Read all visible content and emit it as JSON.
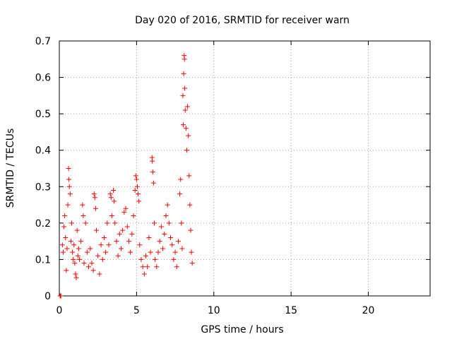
{
  "chart_data": {
    "type": "scatter",
    "title": "Day 020 of 2016, SRMTID for receiver warn",
    "xlabel": "GPS time / hours",
    "ylabel": "SRMTID / TECUs",
    "xlim": [
      0,
      24
    ],
    "ylim": [
      0,
      0.7
    ],
    "xticks": [
      0,
      5,
      10,
      15,
      20
    ],
    "yticks": [
      0,
      0.1,
      0.2,
      0.3,
      0.4,
      0.5,
      0.6,
      0.7
    ],
    "ytick_labels": [
      "0",
      "0.1",
      "0.2",
      "0.3",
      "0.4",
      "0.5",
      "0.6",
      "0.7"
    ],
    "grid": true,
    "marker": "+",
    "series": [
      {
        "name": "SRMTID",
        "color": "#ff0000",
        "points": [
          [
            0.05,
            0.0
          ],
          [
            0.08,
            0.0
          ],
          [
            0.1,
            0.0
          ],
          [
            0.2,
            0.14
          ],
          [
            0.25,
            0.12
          ],
          [
            0.3,
            0.19
          ],
          [
            0.35,
            0.22
          ],
          [
            0.4,
            0.16
          ],
          [
            0.45,
            0.07
          ],
          [
            0.5,
            0.13
          ],
          [
            0.55,
            0.25
          ],
          [
            0.6,
            0.35
          ],
          [
            0.62,
            0.32
          ],
          [
            0.65,
            0.3
          ],
          [
            0.7,
            0.28
          ],
          [
            0.75,
            0.15
          ],
          [
            0.8,
            0.2
          ],
          [
            0.85,
            0.12
          ],
          [
            0.9,
            0.1
          ],
          [
            0.95,
            0.14
          ],
          [
            1.0,
            0.09
          ],
          [
            1.05,
            0.06
          ],
          [
            1.1,
            0.05
          ],
          [
            1.15,
            0.18
          ],
          [
            1.2,
            0.11
          ],
          [
            1.25,
            0.13
          ],
          [
            1.3,
            0.1
          ],
          [
            1.4,
            0.15
          ],
          [
            1.5,
            0.25
          ],
          [
            1.55,
            0.22
          ],
          [
            1.6,
            0.09
          ],
          [
            1.7,
            0.2
          ],
          [
            1.8,
            0.12
          ],
          [
            1.9,
            0.08
          ],
          [
            2.0,
            0.13
          ],
          [
            2.1,
            0.09
          ],
          [
            2.2,
            0.07
          ],
          [
            2.25,
            0.28
          ],
          [
            2.3,
            0.27
          ],
          [
            2.35,
            0.24
          ],
          [
            2.4,
            0.18
          ],
          [
            2.5,
            0.11
          ],
          [
            2.6,
            0.06
          ],
          [
            2.7,
            0.14
          ],
          [
            2.8,
            0.1
          ],
          [
            2.9,
            0.16
          ],
          [
            3.0,
            0.12
          ],
          [
            3.1,
            0.2
          ],
          [
            3.2,
            0.14
          ],
          [
            3.3,
            0.28
          ],
          [
            3.35,
            0.27
          ],
          [
            3.4,
            0.22
          ],
          [
            3.5,
            0.29
          ],
          [
            3.55,
            0.26
          ],
          [
            3.6,
            0.2
          ],
          [
            3.7,
            0.15
          ],
          [
            3.8,
            0.11
          ],
          [
            3.9,
            0.17
          ],
          [
            4.0,
            0.13
          ],
          [
            4.1,
            0.18
          ],
          [
            4.2,
            0.23
          ],
          [
            4.3,
            0.24
          ],
          [
            4.4,
            0.19
          ],
          [
            4.5,
            0.15
          ],
          [
            4.6,
            0.12
          ],
          [
            4.7,
            0.17
          ],
          [
            4.8,
            0.22
          ],
          [
            4.9,
            0.29
          ],
          [
            4.95,
            0.33
          ],
          [
            5.0,
            0.32
          ],
          [
            5.05,
            0.3
          ],
          [
            5.1,
            0.28
          ],
          [
            5.15,
            0.26
          ],
          [
            5.2,
            0.14
          ],
          [
            5.3,
            0.1
          ],
          [
            5.4,
            0.08
          ],
          [
            5.5,
            0.06
          ],
          [
            5.6,
            0.11
          ],
          [
            5.7,
            0.08
          ],
          [
            5.8,
            0.16
          ],
          [
            5.9,
            0.12
          ],
          [
            6.0,
            0.38
          ],
          [
            6.02,
            0.37
          ],
          [
            6.05,
            0.34
          ],
          [
            6.1,
            0.31
          ],
          [
            6.15,
            0.2
          ],
          [
            6.2,
            0.1
          ],
          [
            6.3,
            0.08
          ],
          [
            6.4,
            0.12
          ],
          [
            6.5,
            0.15
          ],
          [
            6.6,
            0.19
          ],
          [
            6.7,
            0.13
          ],
          [
            6.8,
            0.17
          ],
          [
            6.9,
            0.22
          ],
          [
            7.0,
            0.25
          ],
          [
            7.1,
            0.2
          ],
          [
            7.2,
            0.16
          ],
          [
            7.3,
            0.14
          ],
          [
            7.4,
            0.1
          ],
          [
            7.5,
            0.12
          ],
          [
            7.6,
            0.08
          ],
          [
            7.7,
            0.15
          ],
          [
            7.8,
            0.28
          ],
          [
            7.85,
            0.32
          ],
          [
            7.9,
            0.2
          ],
          [
            7.95,
            0.13
          ],
          [
            8.0,
            0.55
          ],
          [
            8.02,
            0.47
          ],
          [
            8.05,
            0.61
          ],
          [
            8.08,
            0.66
          ],
          [
            8.1,
            0.65
          ],
          [
            8.12,
            0.57
          ],
          [
            8.15,
            0.51
          ],
          [
            8.2,
            0.46
          ],
          [
            8.25,
            0.4
          ],
          [
            8.3,
            0.52
          ],
          [
            8.35,
            0.44
          ],
          [
            8.4,
            0.33
          ],
          [
            8.45,
            0.25
          ],
          [
            8.5,
            0.18
          ],
          [
            8.55,
            0.12
          ],
          [
            8.6,
            0.09
          ]
        ]
      }
    ]
  }
}
